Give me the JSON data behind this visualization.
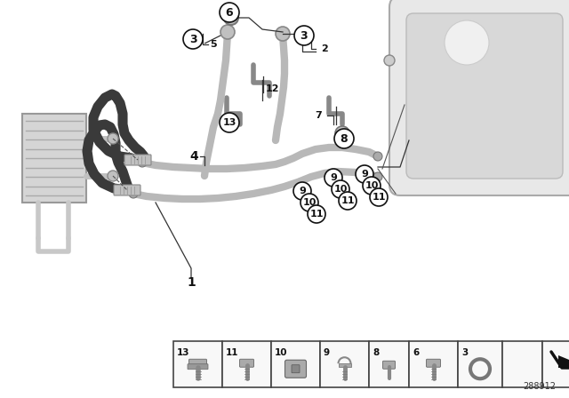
{
  "bg_color": "#ffffff",
  "fig_width": 6.4,
  "fig_height": 4.48,
  "part_number": "288912",
  "silver": "#b8b8b8",
  "dark_rubber": "#3a3a3a",
  "housing_fill": "#e8e8e8",
  "housing_edge": "#aaaaaa",
  "callout_circle_fill": "#ffffff",
  "callout_circle_edge": "#111111",
  "leader_color": "#333333",
  "legend_box_fill": "#f8f8f8",
  "legend_box_edge": "#444444"
}
